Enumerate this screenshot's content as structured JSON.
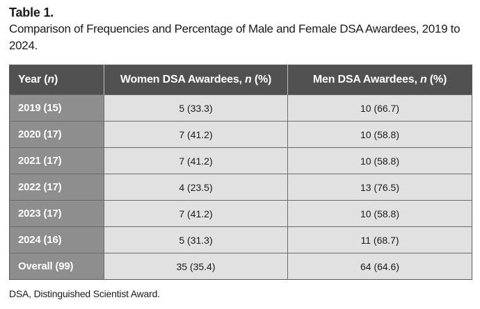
{
  "caption": {
    "label": "Table 1.",
    "title": "Comparison of Frequencies and Percentage of Male and Female DSA Awardees, 2019 to 2024."
  },
  "table": {
    "headers": [
      {
        "text": "Year (",
        "italic": "n",
        "suffix": ")"
      },
      {
        "text": "Women DSA Awardees, ",
        "italic": "n",
        "suffix": " (%)"
      },
      {
        "text": "Men DSA Awardees, ",
        "italic": "n",
        "suffix": " (%)"
      }
    ],
    "rows": [
      {
        "year": "2019 (15)",
        "women": "5 (33.3)",
        "men": "10 (66.7)"
      },
      {
        "year": "2020 (17)",
        "women": "7 (41.2)",
        "men": "10 (58.8)"
      },
      {
        "year": "2021 (17)",
        "women": "7 (41.2)",
        "men": "10 (58.8)"
      },
      {
        "year": "2022 (17)",
        "women": "4 (23.5)",
        "men": "13 (76.5)"
      },
      {
        "year": "2023 (17)",
        "women": "7 (41.2)",
        "men": "10 (58.8)"
      },
      {
        "year": "2024 (16)",
        "women": "5 (31.3)",
        "men": "11 (68.7)"
      },
      {
        "year": "Overall (99)",
        "women": "35 (35.4)",
        "men": "64 (64.6)"
      }
    ]
  },
  "footnote": "DSA, Distinguished Scientist Award.",
  "colors": {
    "header_bg": "#515151",
    "rowhead_bg": "#8e8e8e",
    "cell_bg": "#e1e1e1"
  }
}
